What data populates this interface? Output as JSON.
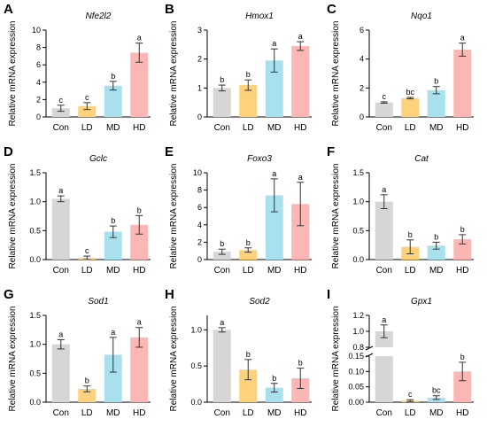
{
  "colors": [
    "#d6d6d6",
    "#fdd27a",
    "#a8e0ee",
    "#fcb7b5"
  ],
  "chart_data": [
    {
      "letter": "A",
      "title": "Nfe2l2",
      "type": "bar",
      "categories": [
        "Con",
        "LD",
        "MD",
        "HD"
      ],
      "values": [
        1.0,
        1.25,
        3.6,
        7.4
      ],
      "errors": [
        0.35,
        0.4,
        0.5,
        1.1
      ],
      "sig": [
        "c",
        "c",
        "b",
        "a"
      ],
      "ylim": [
        0,
        10
      ],
      "yticks": [
        "0",
        "2",
        "4",
        "6",
        "8",
        "10"
      ],
      "ylabel": "Relative mRNA expression"
    },
    {
      "letter": "B",
      "title": "Hmox1",
      "type": "bar",
      "categories": [
        "Con",
        "LD",
        "MD",
        "HD"
      ],
      "values": [
        1.0,
        1.1,
        1.95,
        2.45
      ],
      "errors": [
        0.1,
        0.18,
        0.4,
        0.15
      ],
      "sig": [
        "b",
        "b",
        "a",
        "a"
      ],
      "ylim": [
        0,
        3
      ],
      "yticks": [
        "0",
        "1",
        "2",
        "3"
      ],
      "ylabel": "Relative mRNA expression"
    },
    {
      "letter": "C",
      "title": "Nqo1",
      "type": "bar",
      "categories": [
        "Con",
        "LD",
        "MD",
        "HD"
      ],
      "values": [
        1.0,
        1.3,
        1.85,
        4.65
      ],
      "errors": [
        0.05,
        0.05,
        0.25,
        0.45
      ],
      "sig": [
        "c",
        "bc",
        "b",
        "a"
      ],
      "ylim": [
        0,
        6
      ],
      "yticks": [
        "0",
        "2",
        "4",
        "6"
      ],
      "ylabel": "Relative mRNA expression"
    },
    {
      "letter": "D",
      "title": "Gclc",
      "type": "bar",
      "categories": [
        "Con",
        "LD",
        "MD",
        "HD"
      ],
      "values": [
        1.05,
        0.03,
        0.48,
        0.6
      ],
      "errors": [
        0.05,
        0.03,
        0.1,
        0.16
      ],
      "sig": [
        "a",
        "c",
        "b",
        "b"
      ],
      "ylim": [
        0,
        1.5
      ],
      "yticks": [
        "0.0",
        "0.5",
        "1.0",
        "1.5"
      ],
      "ylabel": "Relative mRNA expression"
    },
    {
      "letter": "E",
      "title": "Foxo3",
      "type": "bar",
      "categories": [
        "Con",
        "LD",
        "MD",
        "HD"
      ],
      "values": [
        0.9,
        1.1,
        7.4,
        6.4
      ],
      "errors": [
        0.3,
        0.25,
        1.9,
        2.5
      ],
      "sig": [
        "b",
        "b",
        "a",
        "a"
      ],
      "ylim": [
        0,
        10
      ],
      "yticks": [
        "0",
        "2",
        "4",
        "6",
        "8",
        "10"
      ],
      "ylabel": "Relative mRNA expression"
    },
    {
      "letter": "F",
      "title": "Cat",
      "type": "bar",
      "categories": [
        "Con",
        "LD",
        "MD",
        "HD"
      ],
      "values": [
        1.0,
        0.22,
        0.24,
        0.35
      ],
      "errors": [
        0.12,
        0.12,
        0.06,
        0.08
      ],
      "sig": [
        "a",
        "b",
        "b",
        "b"
      ],
      "ylim": [
        0,
        1.5
      ],
      "yticks": [
        "0.0",
        "0.5",
        "1.0",
        "1.5"
      ],
      "ylabel": "Relative mRNA expression"
    },
    {
      "letter": "G",
      "title": "Sod1",
      "type": "bar",
      "categories": [
        "Con",
        "LD",
        "MD",
        "HD"
      ],
      "values": [
        1.0,
        0.23,
        0.82,
        1.12
      ],
      "errors": [
        0.08,
        0.05,
        0.3,
        0.17
      ],
      "sig": [
        "a",
        "b",
        "a",
        "a"
      ],
      "ylim": [
        0,
        1.5
      ],
      "yticks": [
        "0.0",
        "0.5",
        "1.0",
        "1.5"
      ],
      "ylabel": "Relative mRNA expression"
    },
    {
      "letter": "H",
      "title": "Sod2",
      "type": "bar",
      "categories": [
        "Con",
        "LD",
        "MD",
        "HD"
      ],
      "values": [
        1.0,
        0.45,
        0.2,
        0.33
      ],
      "errors": [
        0.03,
        0.14,
        0.06,
        0.14
      ],
      "sig": [
        "a",
        "b",
        "b",
        "b"
      ],
      "ylim": [
        0,
        1.2
      ],
      "yticks": [
        "0.0",
        "0.5",
        "1.0"
      ],
      "ylabel": "Relative mRNA expression"
    },
    {
      "letter": "I",
      "title": "Gpx1",
      "type": "bar",
      "broken_axis": true,
      "categories": [
        "Con",
        "LD",
        "MD",
        "HD"
      ],
      "values": [
        1.0,
        0.005,
        0.015,
        0.1
      ],
      "errors": [
        0.08,
        0.003,
        0.006,
        0.03
      ],
      "sig": [
        "a",
        "c",
        "bc",
        "b"
      ],
      "ylim_lower": [
        0,
        0.15
      ],
      "ylim_upper": [
        0.8,
        1.2
      ],
      "yticks_lower": [
        "0.00",
        "0.05",
        "0.10",
        "0.15"
      ],
      "yticks_upper": [
        "0.8",
        "1.0",
        "1.2"
      ],
      "ylabel": "Relative mRNA expression"
    }
  ]
}
